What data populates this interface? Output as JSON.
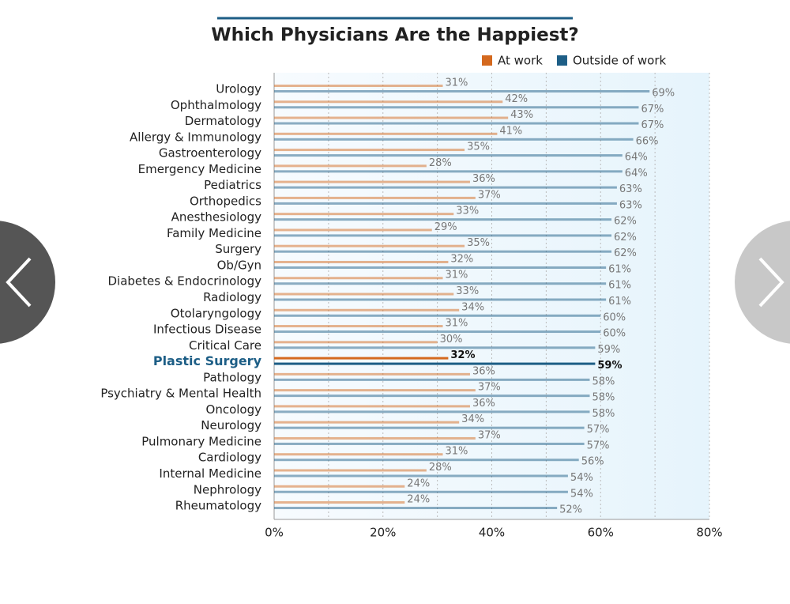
{
  "chart_data": {
    "type": "hbar",
    "title": "Which Physicians Are the Happiest?",
    "categories": [
      "Urology",
      "Ophthalmology",
      "Dermatology",
      "Allergy & Immunology",
      "Gastroenterology",
      "Emergency Medicine",
      "Pediatrics",
      "Orthopedics",
      "Anesthesiology",
      "Family Medicine",
      "Surgery",
      "Ob/Gyn",
      "Diabetes & Endocrinology",
      "Radiology",
      "Otolaryngology",
      "Infectious Disease",
      "Critical Care",
      "Plastic Surgery",
      "Pathology",
      "Psychiatry & Mental Health",
      "Oncology",
      "Neurology",
      "Pulmonary Medicine",
      "Cardiology",
      "Internal Medicine",
      "Nephrology",
      "Rheumatology"
    ],
    "series": [
      {
        "name": "At work",
        "color": "#d4691e",
        "values": [
          31,
          42,
          43,
          41,
          35,
          28,
          36,
          37,
          33,
          29,
          35,
          32,
          31,
          33,
          34,
          31,
          30,
          32,
          36,
          37,
          36,
          34,
          37,
          31,
          28,
          24,
          24
        ],
        "value_labels": [
          "31%",
          "42%",
          "43%",
          "41%",
          "35%",
          "28%",
          "36%",
          "37%",
          "33%",
          "29%",
          "35%",
          "32%",
          "31%",
          "33%",
          "34%",
          "31%",
          "30%",
          "32%",
          "36%",
          "37%",
          "36%",
          "34%",
          "37%",
          "31%",
          "28%",
          "24%",
          "24%"
        ]
      },
      {
        "name": "Outside of work",
        "color": "#1d5e86",
        "values": [
          69,
          67,
          67,
          66,
          64,
          64,
          63,
          63,
          62,
          62,
          62,
          61,
          61,
          61,
          60,
          60,
          59,
          59,
          58,
          58,
          58,
          57,
          57,
          56,
          54,
          54,
          52
        ],
        "value_labels": [
          "69%",
          "67%",
          "67%",
          "66%",
          "64%",
          "64%",
          "63%",
          "63%",
          "62%",
          "62%",
          "62%",
          "61%",
          "61%",
          "61%",
          "60%",
          "60%",
          "59%",
          "59%",
          "58%",
          "58%",
          "58%",
          "57%",
          "57%",
          "56%",
          "54%",
          "54%",
          "52%"
        ]
      }
    ],
    "highlight_category": "Plastic Surgery",
    "xlim": [
      0,
      80
    ],
    "xticks": [
      {
        "value": 0,
        "label": "0%"
      },
      {
        "value": 20,
        "label": "20%"
      },
      {
        "value": 40,
        "label": "40%"
      },
      {
        "value": 60,
        "label": "60%"
      },
      {
        "value": 80,
        "label": "80%"
      }
    ],
    "grid": true,
    "legend": "top-right"
  }
}
